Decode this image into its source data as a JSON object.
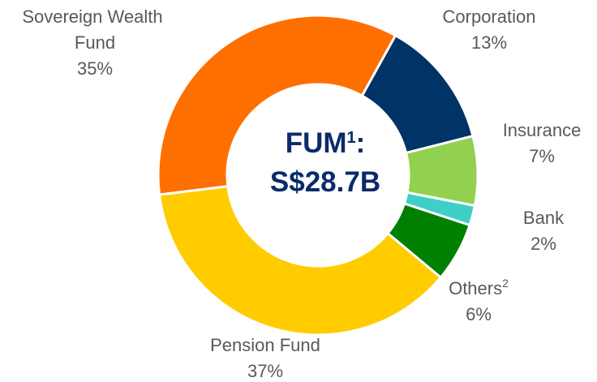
{
  "chart_data": {
    "type": "donut",
    "categories": [
      "Corporation",
      "Insurance",
      "Bank",
      "Others",
      "Pension Fund",
      "Sovereign Wealth Fund"
    ],
    "category_notes": [
      null,
      null,
      null,
      "2",
      null,
      null
    ],
    "values": [
      13,
      7,
      2,
      6,
      37,
      35
    ],
    "value_labels": [
      "13%",
      "7%",
      "2%",
      "6%",
      "37%",
      "35%"
    ],
    "colors": [
      "#003366",
      "#92d050",
      "#3ecfc6",
      "#008000",
      "#ffcc00",
      "#ff6f00"
    ],
    "center_label": {
      "text": "FUM",
      "superscript": "1",
      "suffix": ":",
      "line2": "S$28.7B"
    }
  }
}
